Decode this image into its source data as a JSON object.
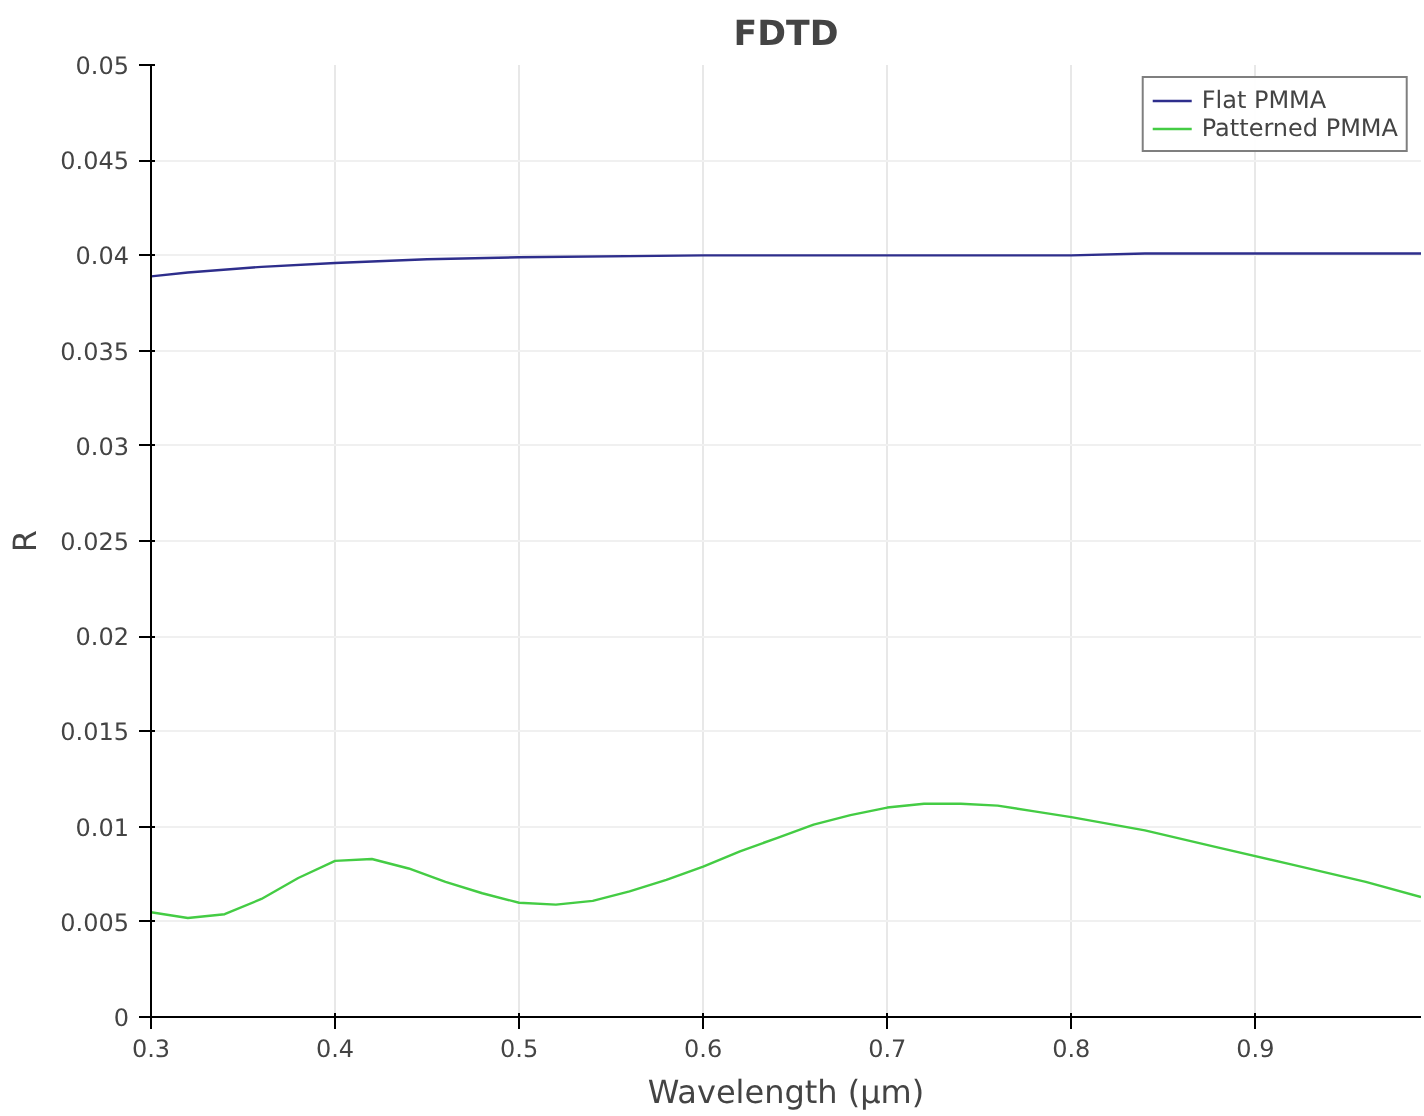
{
  "chart_data": {
    "type": "line",
    "title": "FDTD",
    "xlabel": "Wavelength (µm)",
    "ylabel": "R",
    "xlim": [
      0.3,
      0.99
    ],
    "ylim": [
      0,
      0.05
    ],
    "xticks": [
      0.3,
      0.4,
      0.5,
      0.6,
      0.7,
      0.8,
      0.9
    ],
    "yticks": [
      0,
      0.005,
      0.01,
      0.015,
      0.02,
      0.025,
      0.03,
      0.035,
      0.04,
      0.045,
      0.05
    ],
    "grid": true,
    "legend": "top right",
    "marker": "none",
    "line_style": "solid",
    "series": [
      {
        "name": "Flat PMMA",
        "color": "#2e2e8c",
        "x": [
          0.3,
          0.32,
          0.36,
          0.4,
          0.45,
          0.5,
          0.6,
          0.7,
          0.8,
          0.84,
          0.9,
          0.99
        ],
        "values": [
          0.0389,
          0.0391,
          0.0394,
          0.0396,
          0.0398,
          0.0399,
          0.04,
          0.04,
          0.04,
          0.0401,
          0.0401,
          0.0401
        ]
      },
      {
        "name": "Patterned PMMA",
        "color": "#44cc44",
        "x": [
          0.3,
          0.32,
          0.34,
          0.36,
          0.38,
          0.4,
          0.42,
          0.44,
          0.46,
          0.48,
          0.5,
          0.52,
          0.54,
          0.56,
          0.58,
          0.6,
          0.62,
          0.64,
          0.66,
          0.68,
          0.7,
          0.72,
          0.74,
          0.76,
          0.78,
          0.8,
          0.84,
          0.88,
          0.92,
          0.96,
          0.99
        ],
        "values": [
          0.0055,
          0.0052,
          0.0054,
          0.0062,
          0.0073,
          0.0082,
          0.0083,
          0.0078,
          0.0071,
          0.0065,
          0.006,
          0.0059,
          0.0061,
          0.0066,
          0.0072,
          0.0079,
          0.0087,
          0.0094,
          0.0101,
          0.0106,
          0.011,
          0.0112,
          0.0112,
          0.0111,
          0.0108,
          0.0105,
          0.0098,
          0.0089,
          0.008,
          0.0071,
          0.0063
        ]
      }
    ]
  }
}
